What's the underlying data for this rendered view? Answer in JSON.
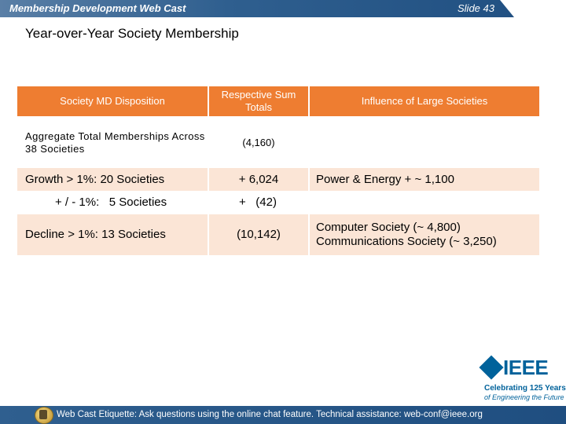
{
  "header": {
    "title": "Membership Development Web Cast",
    "slide": "Slide 43"
  },
  "page_title": "Year-over-Year Society Membership",
  "table": {
    "columns": [
      "Society MD Disposition",
      "Respective Sum Totals",
      "Influence of Large Societies"
    ],
    "rows": [
      {
        "label": "Aggregate Total Memberships Across 38 Societies",
        "total": "(4,160)",
        "influence": ""
      },
      {
        "label": "Growth > 1%: 20 Societies",
        "total": "+ 6,024",
        "influence": "Power & Energy + ~ 1,100"
      },
      {
        "label": "+ / - 1%:   5 Societies",
        "total": "+   (42)",
        "influence": ""
      },
      {
        "label": "Decline > 1%: 13 Societies",
        "total": "(10,142)",
        "influence": "Computer Society (~ 4,800)\nCommunications Society (~ 3,250)"
      }
    ]
  },
  "logo": {
    "name": "IEEE",
    "tagline1": "Celebrating 125 Years",
    "tagline2": "of Engineering the Future"
  },
  "footer": {
    "text": "Web Cast Etiquette:  Ask questions using the online chat feature.  Technical assistance: web-conf@ieee.org"
  },
  "colors": {
    "header": "#1f4e80",
    "table_header": "#ee7d31",
    "table_stripe": "#fbe5d6",
    "logo": "#00629b"
  }
}
